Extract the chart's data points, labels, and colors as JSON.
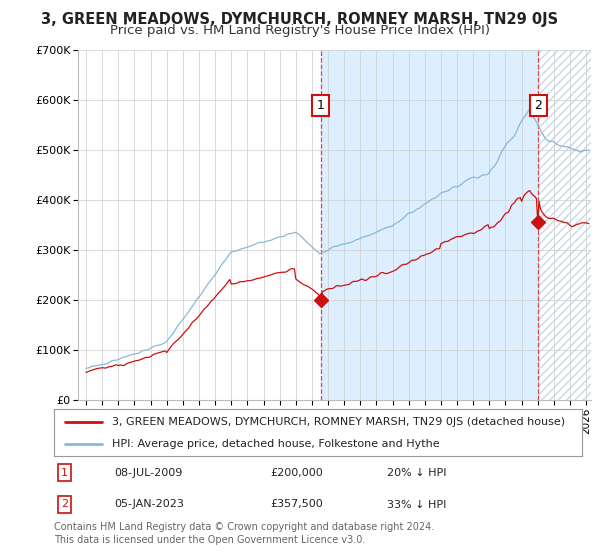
{
  "title": "3, GREEN MEADOWS, DYMCHURCH, ROMNEY MARSH, TN29 0JS",
  "subtitle": "Price paid vs. HM Land Registry's House Price Index (HPI)",
  "ylim": [
    0,
    700000
  ],
  "yticks": [
    0,
    100000,
    200000,
    300000,
    400000,
    500000,
    600000,
    700000
  ],
  "ytick_labels": [
    "£0",
    "£100K",
    "£200K",
    "£300K",
    "£400K",
    "£500K",
    "£600K",
    "£700K"
  ],
  "xlim_start": 1994.5,
  "xlim_end": 2026.3,
  "hpi_color": "#89b8d8",
  "price_color": "#cc1111",
  "shade_color": "#ddeeff",
  "hatch_color": "#c8d8e8",
  "marker1_year": 2009.54,
  "marker1_price": 200000,
  "marker2_year": 2023.04,
  "marker2_price": 357500,
  "vline1_x": 2009.54,
  "vline2_x": 2023.04,
  "legend_line1": "3, GREEN MEADOWS, DYMCHURCH, ROMNEY MARSH, TN29 0JS (detached house)",
  "legend_line2": "HPI: Average price, detached house, Folkestone and Hythe",
  "footnote": "Contains HM Land Registry data © Crown copyright and database right 2024.\nThis data is licensed under the Open Government Licence v3.0.",
  "background_color": "#ffffff",
  "grid_color": "#cccccc",
  "title_fontsize": 10.5,
  "subtitle_fontsize": 9.5,
  "tick_fontsize": 7.5,
  "legend_fontsize": 8,
  "ann_fontsize": 8,
  "footnote_fontsize": 7
}
